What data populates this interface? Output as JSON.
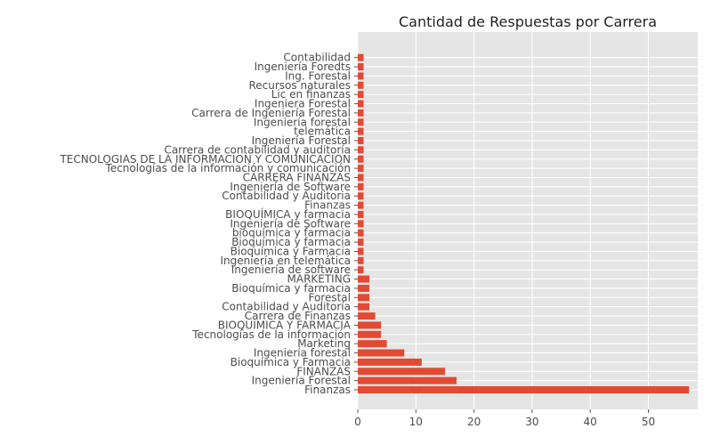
{
  "chart_data": {
    "type": "bar",
    "orientation": "horizontal",
    "title": "Cantidad de Respuestas por Carrera",
    "xlabel": "",
    "ylabel": "",
    "xlim": [
      0,
      60
    ],
    "xticks": [
      0,
      10,
      20,
      30,
      40,
      50
    ],
    "grid": true,
    "style": "ggplot",
    "bar_color": "#E24A33",
    "panel_color": "#E5E5E5",
    "categories": [
      "Finanzas",
      "Ingeniería Forestal",
      "FINANZAS",
      "Bioquímica y Farmacia",
      "Ingeniería forestal",
      "Marketing",
      "Tecnologías de la información",
      "BIOQUÍMICA Y FARMACIA",
      "Carrera de Finanzas",
      "Contabilidad y Auditoría",
      "Forestal",
      "Bioquímica y farmacia",
      "MARKETING",
      "Ingeniería de software",
      "Ingeniería en telemática",
      "Bioquímica  y Farmacia",
      "Bioquímica  y farmacia",
      "bioquímica y farmacia",
      "Ingeniería de Software",
      "BIOQUÍMICA y farmacia",
      "Finanzas ",
      "Contabilidad y Auditoria",
      "Ingeniería de Software ",
      "CARRERA FINANZAS",
      "Tecnologías de la información y comunicación",
      "TECNOLOGIAS DE LA INFORMACION Y COMUNICACION",
      "Carrera de contabilidad y auditoría",
      "Ingeniería Forestal ",
      "telemática",
      "Ingeniería forestal ",
      "Carrera de Ingeniería Forestal",
      "Ingeniera Forestal",
      "Lic en finanzas",
      "Recursos naturales",
      "Ing. Forestal",
      "Ingeniería Foredts",
      "Contabilidad"
    ],
    "values": [
      57,
      17,
      15,
      11,
      8,
      5,
      4,
      4,
      3,
      2,
      2,
      2,
      2,
      1,
      1,
      1,
      1,
      1,
      1,
      1,
      1,
      1,
      1,
      1,
      1,
      1,
      1,
      1,
      1,
      1,
      1,
      1,
      1,
      1,
      1,
      1,
      1
    ]
  }
}
